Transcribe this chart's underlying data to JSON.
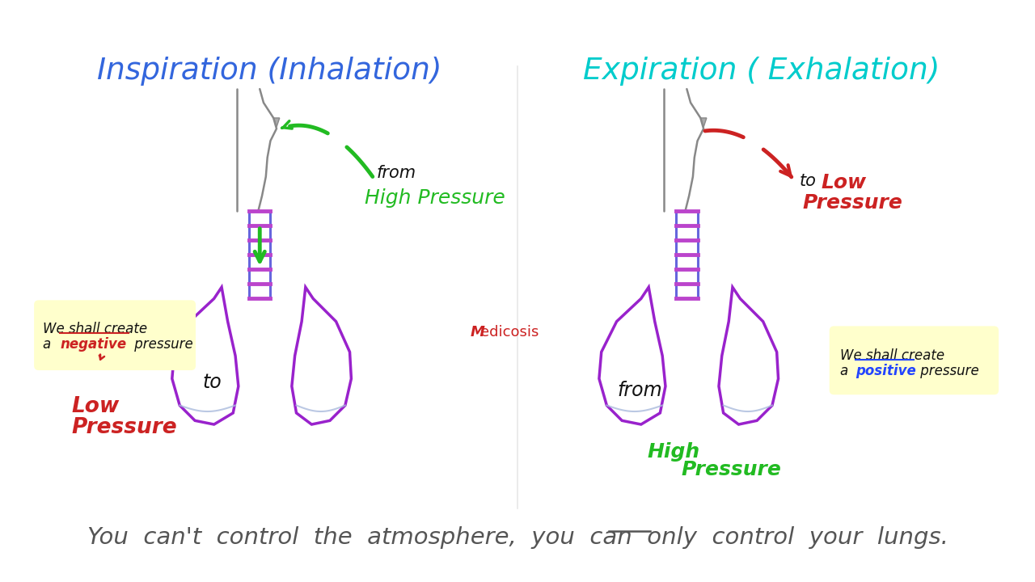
{
  "bg_color": "#ffffff",
  "title_inspiration": "Inspiration (Inhalation)",
  "title_expiration": "Expiration ( Exhalation)",
  "title_insp_color": "#3366dd",
  "title_exp_color": "#00cccc",
  "bottom_text": "You  can't  control  the  atmosphere,  you  can  only  control  your  lungs.",
  "bottom_text_color": "#555555",
  "green_color": "#22bb22",
  "red_color": "#cc2222",
  "lung_color": "#9922cc",
  "trachea_tube_color": "#6666dd",
  "trachea_ring_color": "#bb44cc",
  "face_color": "#888888",
  "nose_fill": "#aaaaaa",
  "yellow_bg": "#ffffcc",
  "medicosis_color": "#cc2222",
  "negative_color": "#cc2222",
  "positive_color": "#2244ff",
  "text_black": "#111111",
  "separator_color": "#dddddd"
}
